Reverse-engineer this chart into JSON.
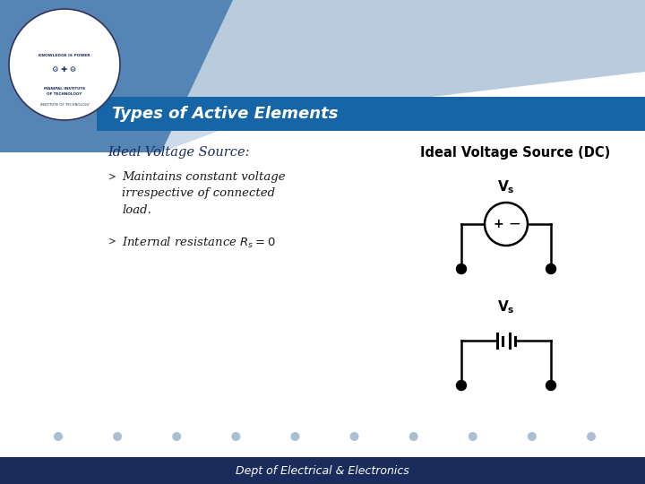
{
  "title": "Types of Active Elements",
  "footer": "Dept of Electrical & Electronics",
  "header_bg": "#1565a7",
  "header_text_color": "#ffffff",
  "footer_bg": "#1a2c5b",
  "footer_text_color": "#ffffff",
  "bg_color": "#ffffff",
  "poly_dark_blue": "#2060a0",
  "poly_med_blue": "#6090bb",
  "poly_light_blue": "#aabfd4",
  "poly_lighter_blue": "#c5d5e4",
  "ideal_vs_title": "Ideal Voltage Source (DC)",
  "bullet_title": "Ideal Voltage Source:",
  "dot_color": "#aabfd4",
  "n_dots": 10
}
